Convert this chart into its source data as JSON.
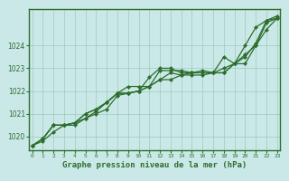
{
  "xlabel": "Graphe pression niveau de la mer (hPa)",
  "bg_color": "#cbe8e8",
  "plot_bg_color": "#cbe8e8",
  "border_color": "#2d6e2d",
  "grid_color": "#99ccbb",
  "line_color": "#2d6e2d",
  "x_ticks": [
    0,
    1,
    2,
    3,
    4,
    5,
    6,
    7,
    8,
    9,
    10,
    11,
    12,
    13,
    14,
    15,
    16,
    17,
    18,
    19,
    20,
    21,
    22,
    23
  ],
  "ylim": [
    1019.4,
    1025.6
  ],
  "yticks": [
    1020,
    1021,
    1022,
    1023,
    1024
  ],
  "series": [
    [
      1019.6,
      1019.8,
      1020.2,
      1020.5,
      1020.5,
      1020.8,
      1021.0,
      1021.2,
      1021.8,
      1021.9,
      1022.0,
      1022.2,
      1022.5,
      1022.8,
      1022.7,
      1022.7,
      1022.7,
      1022.8,
      1022.8,
      1023.2,
      1023.6,
      1024.0,
      1024.7,
      1025.2
    ],
    [
      1019.6,
      1019.9,
      1020.5,
      1020.5,
      1020.6,
      1020.8,
      1021.1,
      1021.5,
      1021.9,
      1021.9,
      1022.0,
      1022.2,
      1022.9,
      1022.9,
      1022.9,
      1022.8,
      1022.8,
      1022.8,
      1022.8,
      1023.2,
      1023.2,
      1024.0,
      1025.0,
      1025.2
    ],
    [
      1019.6,
      1019.9,
      1020.5,
      1020.5,
      1020.6,
      1021.0,
      1021.2,
      1021.5,
      1021.9,
      1021.9,
      1022.0,
      1022.6,
      1023.0,
      1023.0,
      1022.8,
      1022.8,
      1022.8,
      1022.8,
      1023.0,
      1023.2,
      1023.5,
      1024.1,
      1025.1,
      1025.3
    ],
    [
      1019.6,
      1019.9,
      1020.5,
      1020.5,
      1020.6,
      1021.0,
      1021.2,
      1021.5,
      1021.9,
      1022.2,
      1022.2,
      1022.2,
      1022.5,
      1022.5,
      1022.7,
      1022.8,
      1022.9,
      1022.8,
      1023.5,
      1023.2,
      1024.0,
      1024.8,
      1025.1,
      1025.2
    ]
  ]
}
